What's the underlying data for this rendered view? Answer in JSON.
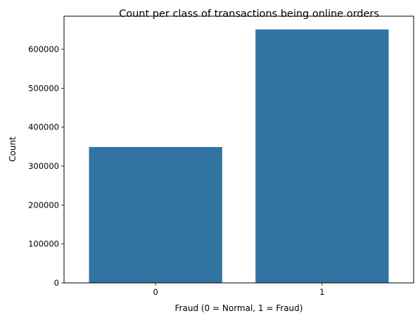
{
  "chart_data": {
    "type": "bar",
    "title": "Count per class of transactions being online orders",
    "xlabel": "Fraud (0 = Normal, 1 = Fraud)",
    "ylabel": "Count",
    "categories": [
      "0",
      "1"
    ],
    "values": [
      349000,
      651000
    ],
    "ylim": [
      0,
      685000
    ],
    "yticks": [
      0,
      100000,
      200000,
      300000,
      400000,
      500000,
      600000
    ],
    "ytick_labels": [
      "0",
      "100000",
      "200000",
      "300000",
      "400000",
      "500000",
      "600000"
    ],
    "grid": false,
    "legend": "none",
    "bar_color": "#3274a1"
  }
}
